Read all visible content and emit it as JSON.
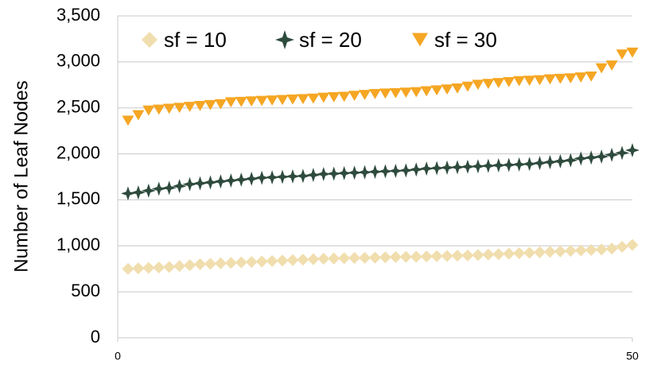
{
  "chart_data": {
    "type": "scatter",
    "y_label": "Number of Leaf Nodes",
    "x": [
      1,
      2,
      3,
      4,
      5,
      6,
      7,
      8,
      9,
      10,
      11,
      12,
      13,
      14,
      15,
      16,
      17,
      18,
      19,
      20,
      21,
      22,
      23,
      24,
      25,
      26,
      27,
      28,
      29,
      30,
      31,
      32,
      33,
      34,
      35,
      36,
      37,
      38,
      39,
      40,
      41,
      42,
      43,
      44,
      45,
      46,
      47,
      48,
      49,
      50
    ],
    "series": [
      {
        "name": "sf = 10",
        "color": "#f1deae",
        "marker": "diamond",
        "values": [
          750,
          755,
          760,
          765,
          770,
          780,
          790,
          800,
          805,
          810,
          815,
          820,
          825,
          830,
          835,
          840,
          845,
          850,
          855,
          860,
          862,
          865,
          868,
          870,
          872,
          875,
          878,
          880,
          882,
          885,
          888,
          890,
          893,
          896,
          900,
          905,
          910,
          915,
          920,
          925,
          930,
          935,
          940,
          945,
          950,
          955,
          960,
          970,
          990,
          1010
        ]
      },
      {
        "name": "sf = 20",
        "color": "#2e4b3d",
        "marker": "star",
        "values": [
          1570,
          1580,
          1600,
          1620,
          1630,
          1650,
          1670,
          1680,
          1690,
          1700,
          1710,
          1720,
          1730,
          1740,
          1745,
          1750,
          1755,
          1760,
          1770,
          1780,
          1785,
          1790,
          1795,
          1800,
          1805,
          1810,
          1815,
          1820,
          1830,
          1840,
          1845,
          1850,
          1855,
          1860,
          1865,
          1870,
          1875,
          1880,
          1885,
          1890,
          1900,
          1910,
          1920,
          1930,
          1950,
          1960,
          1970,
          1990,
          2010,
          2040
        ]
      },
      {
        "name": "sf = 30",
        "color": "#f5a623",
        "marker": "triangle-down",
        "values": [
          2360,
          2420,
          2470,
          2480,
          2490,
          2500,
          2510,
          2520,
          2530,
          2540,
          2560,
          2565,
          2570,
          2575,
          2580,
          2585,
          2590,
          2595,
          2600,
          2610,
          2615,
          2620,
          2630,
          2640,
          2650,
          2655,
          2660,
          2665,
          2670,
          2680,
          2690,
          2700,
          2710,
          2730,
          2750,
          2760,
          2770,
          2780,
          2790,
          2795,
          2800,
          2810,
          2815,
          2820,
          2830,
          2840,
          2930,
          2960,
          3080,
          3100
        ]
      }
    ],
    "xlim": [
      0,
      50
    ],
    "xticks": [
      0,
      50
    ],
    "ylim": [
      0,
      3500
    ],
    "yticks": [
      0,
      500,
      {
        "value": 1000,
        "label": "1,000"
      },
      {
        "value": 1500,
        "label": "1,500"
      },
      {
        "value": 2000,
        "label": "2,000"
      },
      {
        "value": 2500,
        "label": "2,500"
      },
      {
        "value": 3000,
        "label": "3,000"
      },
      {
        "value": 3500,
        "label": "3,500"
      }
    ],
    "grid": true,
    "legend": "top-left"
  }
}
